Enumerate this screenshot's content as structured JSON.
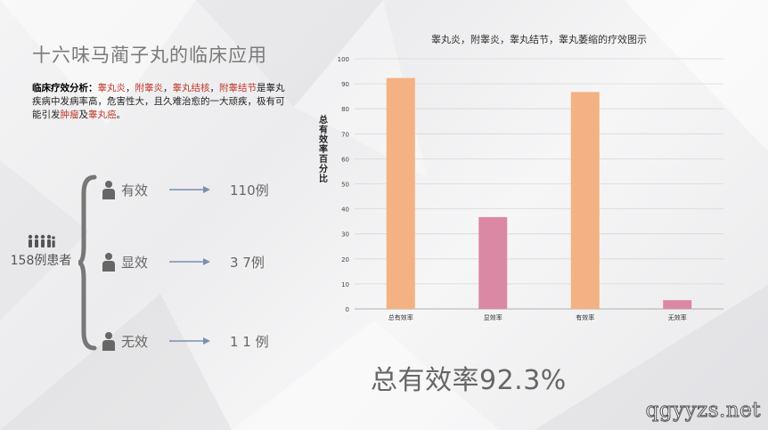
{
  "slide": {
    "title": "十六味马蔺子丸的临床应用",
    "desc_lead": "临床疗效分析：",
    "desc_parts": [
      {
        "t": "睾丸炎",
        "c": "red"
      },
      {
        "t": "，",
        "c": "n"
      },
      {
        "t": "附睾炎",
        "c": "red"
      },
      {
        "t": "，",
        "c": "n"
      },
      {
        "t": "睾丸结核",
        "c": "red"
      },
      {
        "t": "，",
        "c": "n"
      },
      {
        "t": "附睾结节",
        "c": "red"
      },
      {
        "t": "是睾丸疾病中发病率高，危害性大，且久难治愈的一大顽疾，极有可能引发",
        "c": "n"
      },
      {
        "t": "肿瘤",
        "c": "red"
      },
      {
        "t": "及",
        "c": "n"
      },
      {
        "t": "睾丸癌",
        "c": "red"
      },
      {
        "t": "。",
        "c": "n"
      }
    ],
    "patients_label": "158例患者",
    "rows": [
      {
        "label": "有效",
        "count": "110例"
      },
      {
        "label": "显效",
        "count": "3 7例"
      },
      {
        "label": "无效",
        "count": "1 1 例"
      }
    ],
    "overall_rate": "总有效率92.3%",
    "watermark": "qgyyzs.net"
  },
  "colors": {
    "orange": "#f4b183",
    "pink": "#db88a4",
    "axis": "#bbbbbb"
  },
  "chart_data": {
    "type": "bar",
    "title": "睾丸炎，附睾炎，睾丸结节，睾丸萎缩的疗效图示",
    "ylabel": "总有效率百分比",
    "xlabel": "",
    "categories": [
      "总有效率",
      "显效率",
      "有效率",
      "无效率"
    ],
    "values": [
      92.3,
      36.7,
      86.7,
      3.5
    ],
    "bar_colors": [
      "#f4b183",
      "#db88a4",
      "#f4b183",
      "#db88a4"
    ],
    "ylim": [
      0,
      100
    ],
    "yticks": [
      0,
      10,
      20,
      30,
      40,
      50,
      60,
      70,
      80,
      90,
      100
    ],
    "grid": true
  }
}
